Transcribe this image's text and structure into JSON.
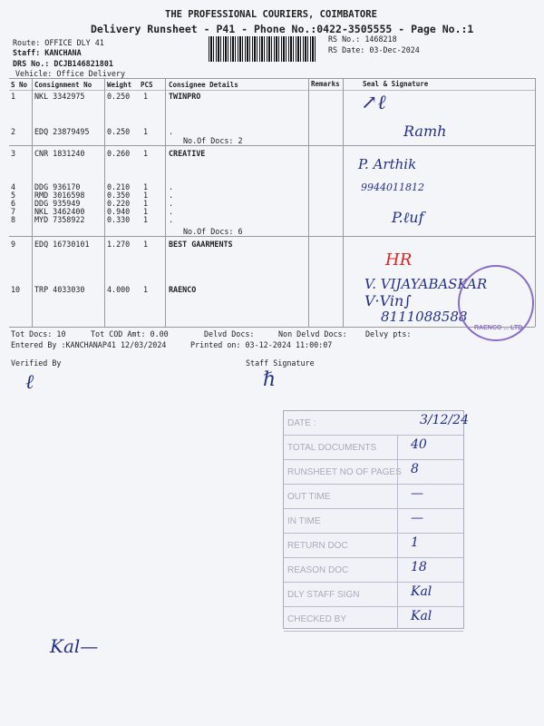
{
  "header": {
    "company": "THE PROFESSIONAL COURIERS, COIMBATORE",
    "title": "Delivery Runsheet - P41 - Phone No.:0422-3505555 - Page No.:1",
    "route": "Route: OFFICE DLY 41",
    "staff": "Staff: KANCHANA",
    "drs": "DRS No.: DCJB146821801",
    "vehicle": "Vehicle: Office Delivery",
    "rs_no": "RS No.: 1468218",
    "rs_date": "RS Date: 03-Dec-2024"
  },
  "columns": [
    "S No",
    "Consignment No",
    "Weight",
    "PCS",
    "Consignee Details",
    "Remarks",
    "Seal & Signature"
  ],
  "rows": [
    {
      "sno": "1",
      "cn": "NKL 3342975",
      "wt": "0.250",
      "pcs": "1",
      "consignee": "TWINPRO"
    },
    {
      "sno": "2",
      "cn": "EDQ 23879495",
      "wt": "0.250",
      "pcs": "1",
      "consignee": "."
    },
    {
      "sno": "3",
      "cn": "CNR 1831240",
      "wt": "0.260",
      "pcs": "1",
      "consignee": "CREATIVE"
    },
    {
      "sno": "4",
      "cn": "DDG 936170",
      "wt": "0.210",
      "pcs": "1",
      "consignee": "."
    },
    {
      "sno": "5",
      "cn": "RMD 3016598",
      "wt": "0.350",
      "pcs": "1",
      "consignee": "."
    },
    {
      "sno": "6",
      "cn": "DDG 935949",
      "wt": "0.220",
      "pcs": "1",
      "consignee": "."
    },
    {
      "sno": "7",
      "cn": "NKL 3462400",
      "wt": "0.940",
      "pcs": "1",
      "consignee": "."
    },
    {
      "sno": "8",
      "cn": "MYD 7358922",
      "wt": "0.330",
      "pcs": "1",
      "consignee": "."
    },
    {
      "sno": "9",
      "cn": "EDQ 16730101",
      "wt": "1.270",
      "pcs": "1",
      "consignee": "BEST GAARMENTS"
    },
    {
      "sno": "10",
      "cn": "TRP 4033030",
      "wt": "4.000",
      "pcs": "1",
      "consignee": "RAENCO"
    }
  ],
  "docs_group1": "No.Of Docs: 2",
  "docs_group2": "No.Of Docs: 6",
  "handwriting": {
    "name1": "P. Arthik",
    "phone1": "9944011812",
    "hr": "HR",
    "name2": "V. VIJAYABASKAR",
    "phone2": "8111088588"
  },
  "footer": {
    "tot_docs": "Tot Docs:  10",
    "tot_cod": "Tot COD Amt:    0.00",
    "delvd": "Delvd Docs:",
    "non_delvd": "Non Delvd Docs:",
    "delvy_pts": "Delvy pts:",
    "entered": "Entered By :KANCHANAP41 12/03/2024",
    "printed": "Printed on: 03-12-2024 11:00:07",
    "verified": "Verified By",
    "staff_sig": "Staff Signature"
  },
  "stamp_box": [
    {
      "label": "DATE :",
      "value": "3/12/24"
    },
    {
      "label": "TOTAL DOCUMENTS",
      "value": "40"
    },
    {
      "label": "RUNSHEET NO OF PAGES",
      "value": "8"
    },
    {
      "label": "OUT TIME",
      "value": "—"
    },
    {
      "label": "IN TIME",
      "value": "—"
    },
    {
      "label": "RETURN DOC",
      "value": "1"
    },
    {
      "label": "REASON DOC",
      "value": "18"
    },
    {
      "label": "DLY STAFF SIGN",
      "value": "Kal"
    },
    {
      "label": "CHECKED BY",
      "value": "Kal"
    }
  ],
  "seal_text": "RAENCO ... LTD"
}
